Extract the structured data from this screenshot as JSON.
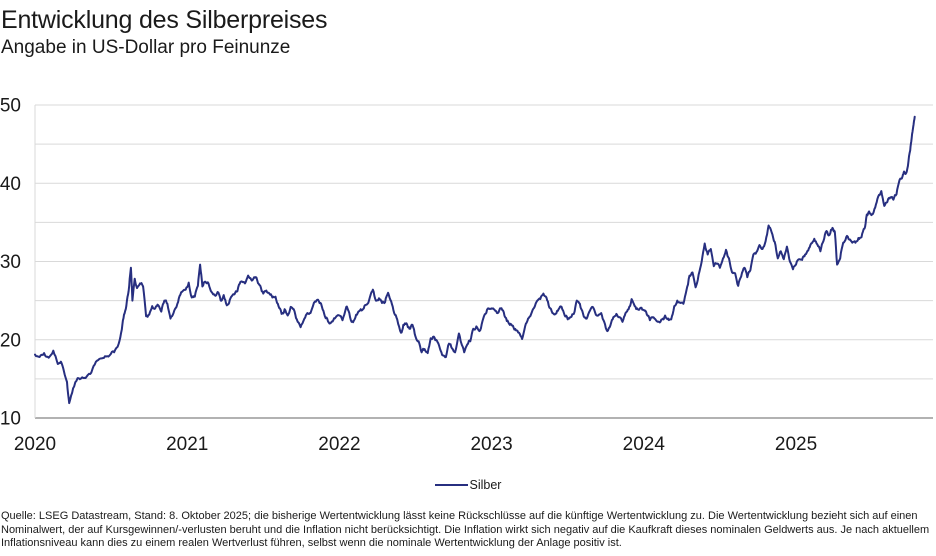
{
  "header": {
    "title": "Entwicklung des Silberpreises",
    "subtitle": "Angabe in US-Dollar pro Feinunze"
  },
  "footer": {
    "source_note": "Quelle: LSEG Datastream, Stand: 8. Oktober 2025; die bisherige Wertentwicklung lässt keine Rückschlüsse auf die künftige Wertentwicklung zu. Die Wertentwicklung bezieht sich auf einen Nominalwert, der auf Kursgewinnen/-verlusten beruht und die Inflation nicht berücksichtigt. Die Inflation wirkt sich negativ auf die Kaufkraft dieses nominalen Geldwerts aus. Je nach aktuellem Inflationsniveau kann dies zu einem realen Wertverlust führen, selbst wenn die nominale Wertentwicklung der Anlage positiv ist."
  },
  "colors": {
    "line": "#272f80",
    "grid": "#d9d9d9",
    "axis": "#999999",
    "text": "#1a1a1a"
  },
  "chart_data": {
    "type": "line",
    "title": "Entwicklung des Silberpreises",
    "subtitle": "Angabe in US-Dollar pro Feinunze",
    "xlabel": "",
    "ylabel": "US-Dollar pro Feinunze",
    "xlim": [
      2020,
      2025.9
    ],
    "ylim": [
      10,
      50
    ],
    "xticks": [
      2020,
      2021,
      2022,
      2023,
      2024,
      2025
    ],
    "ytick_labels": [
      10,
      20,
      30,
      40,
      50
    ],
    "grid": true,
    "grid_interval": 5,
    "legend": {
      "position": "bottom-center",
      "entries": [
        {
          "label": "Silber",
          "color": "#272f80"
        }
      ]
    },
    "render_hints": {
      "noise_amplitude": 0.25,
      "noise_levels": 2,
      "noise_seed": 42,
      "line_width": 2
    },
    "series": [
      {
        "name": "Silber",
        "color": "#272f80",
        "points": [
          [
            2020.0,
            18.1
          ],
          [
            2020.03,
            17.8
          ],
          [
            2020.06,
            18.3
          ],
          [
            2020.09,
            17.7
          ],
          [
            2020.12,
            18.6
          ],
          [
            2020.15,
            16.9
          ],
          [
            2020.17,
            17.2
          ],
          [
            2020.19,
            16.0
          ],
          [
            2020.21,
            14.6
          ],
          [
            2020.225,
            11.9
          ],
          [
            2020.25,
            13.8
          ],
          [
            2020.28,
            15.1
          ],
          [
            2020.31,
            15.2
          ],
          [
            2020.34,
            15.3
          ],
          [
            2020.37,
            15.8
          ],
          [
            2020.4,
            17.2
          ],
          [
            2020.43,
            17.6
          ],
          [
            2020.46,
            17.9
          ],
          [
            2020.49,
            18.0
          ],
          [
            2020.52,
            18.4
          ],
          [
            2020.55,
            19.5
          ],
          [
            2020.57,
            21.3
          ],
          [
            2020.585,
            23.2
          ],
          [
            2020.6,
            24.3
          ],
          [
            2020.615,
            26.2
          ],
          [
            2020.63,
            29.2
          ],
          [
            2020.64,
            25.0
          ],
          [
            2020.655,
            27.8
          ],
          [
            2020.67,
            26.6
          ],
          [
            2020.69,
            27.2
          ],
          [
            2020.71,
            26.8
          ],
          [
            2020.73,
            23.0
          ],
          [
            2020.75,
            23.2
          ],
          [
            2020.77,
            24.3
          ],
          [
            2020.79,
            24.0
          ],
          [
            2020.81,
            24.4
          ],
          [
            2020.83,
            23.6
          ],
          [
            2020.85,
            25.0
          ],
          [
            2020.87,
            24.6
          ],
          [
            2020.89,
            22.7
          ],
          [
            2020.91,
            23.4
          ],
          [
            2020.93,
            24.2
          ],
          [
            2020.95,
            25.6
          ],
          [
            2020.97,
            26.2
          ],
          [
            2020.99,
            26.4
          ],
          [
            2021.01,
            27.3
          ],
          [
            2021.03,
            25.4
          ],
          [
            2021.05,
            25.5
          ],
          [
            2021.07,
            26.9
          ],
          [
            2021.085,
            29.6
          ],
          [
            2021.1,
            26.8
          ],
          [
            2021.12,
            27.4
          ],
          [
            2021.14,
            27.2
          ],
          [
            2021.16,
            26.1
          ],
          [
            2021.18,
            25.7
          ],
          [
            2021.2,
            26.1
          ],
          [
            2021.22,
            25.0
          ],
          [
            2021.24,
            25.7
          ],
          [
            2021.26,
            24.4
          ],
          [
            2021.28,
            25.1
          ],
          [
            2021.31,
            25.8
          ],
          [
            2021.33,
            26.2
          ],
          [
            2021.35,
            27.4
          ],
          [
            2021.38,
            27.2
          ],
          [
            2021.4,
            28.2
          ],
          [
            2021.42,
            27.7
          ],
          [
            2021.44,
            28.0
          ],
          [
            2021.46,
            27.6
          ],
          [
            2021.48,
            26.9
          ],
          [
            2021.5,
            25.9
          ],
          [
            2021.52,
            26.3
          ],
          [
            2021.54,
            25.9
          ],
          [
            2021.56,
            25.4
          ],
          [
            2021.58,
            25.5
          ],
          [
            2021.6,
            24.3
          ],
          [
            2021.62,
            23.3
          ],
          [
            2021.64,
            23.9
          ],
          [
            2021.66,
            23.1
          ],
          [
            2021.68,
            24.2
          ],
          [
            2021.7,
            23.9
          ],
          [
            2021.72,
            22.6
          ],
          [
            2021.745,
            21.6
          ],
          [
            2021.77,
            22.7
          ],
          [
            2021.79,
            23.4
          ],
          [
            2021.81,
            23.4
          ],
          [
            2021.84,
            24.9
          ],
          [
            2021.86,
            25.1
          ],
          [
            2021.88,
            24.6
          ],
          [
            2021.9,
            23.3
          ],
          [
            2021.92,
            22.7
          ],
          [
            2021.94,
            22.1
          ],
          [
            2021.96,
            22.5
          ],
          [
            2021.98,
            23.0
          ],
          [
            2022.0,
            23.1
          ],
          [
            2022.02,
            22.5
          ],
          [
            2022.045,
            24.2
          ],
          [
            2022.06,
            23.7
          ],
          [
            2022.08,
            22.3
          ],
          [
            2022.1,
            22.6
          ],
          [
            2022.12,
            23.4
          ],
          [
            2022.14,
            23.9
          ],
          [
            2022.16,
            24.0
          ],
          [
            2022.18,
            24.5
          ],
          [
            2022.2,
            25.4
          ],
          [
            2022.22,
            26.4
          ],
          [
            2022.24,
            25.0
          ],
          [
            2022.26,
            25.3
          ],
          [
            2022.28,
            24.7
          ],
          [
            2022.3,
            24.8
          ],
          [
            2022.32,
            26.0
          ],
          [
            2022.34,
            24.9
          ],
          [
            2022.36,
            23.4
          ],
          [
            2022.38,
            22.6
          ],
          [
            2022.405,
            20.9
          ],
          [
            2022.42,
            21.9
          ],
          [
            2022.44,
            22.1
          ],
          [
            2022.46,
            21.4
          ],
          [
            2022.48,
            21.9
          ],
          [
            2022.5,
            20.4
          ],
          [
            2022.52,
            19.8
          ],
          [
            2022.54,
            18.4
          ],
          [
            2022.56,
            18.8
          ],
          [
            2022.58,
            18.3
          ],
          [
            2022.6,
            20.2
          ],
          [
            2022.62,
            20.4
          ],
          [
            2022.64,
            19.9
          ],
          [
            2022.66,
            18.9
          ],
          [
            2022.68,
            18.0
          ],
          [
            2022.7,
            17.8
          ],
          [
            2022.72,
            19.5
          ],
          [
            2022.74,
            18.9
          ],
          [
            2022.76,
            18.4
          ],
          [
            2022.785,
            20.8
          ],
          [
            2022.8,
            19.6
          ],
          [
            2022.82,
            18.4
          ],
          [
            2022.84,
            19.4
          ],
          [
            2022.86,
            19.8
          ],
          [
            2022.88,
            21.4
          ],
          [
            2022.9,
            21.7
          ],
          [
            2022.92,
            21.1
          ],
          [
            2022.94,
            22.4
          ],
          [
            2022.96,
            23.3
          ],
          [
            2022.98,
            24.0
          ],
          [
            2023.0,
            24.0
          ],
          [
            2023.02,
            23.8
          ],
          [
            2023.04,
            23.4
          ],
          [
            2023.06,
            24.0
          ],
          [
            2023.08,
            23.5
          ],
          [
            2023.1,
            22.4
          ],
          [
            2023.12,
            21.9
          ],
          [
            2023.14,
            21.8
          ],
          [
            2023.16,
            21.2
          ],
          [
            2023.18,
            20.9
          ],
          [
            2023.2,
            20.1
          ],
          [
            2023.22,
            21.7
          ],
          [
            2023.24,
            22.7
          ],
          [
            2023.26,
            23.3
          ],
          [
            2023.28,
            24.1
          ],
          [
            2023.3,
            25.0
          ],
          [
            2023.32,
            25.2
          ],
          [
            2023.34,
            25.9
          ],
          [
            2023.36,
            25.4
          ],
          [
            2023.38,
            24.1
          ],
          [
            2023.4,
            23.4
          ],
          [
            2023.42,
            23.3
          ],
          [
            2023.44,
            23.9
          ],
          [
            2023.46,
            24.2
          ],
          [
            2023.48,
            23.1
          ],
          [
            2023.5,
            22.6
          ],
          [
            2023.52,
            22.9
          ],
          [
            2023.54,
            23.3
          ],
          [
            2023.56,
            25.0
          ],
          [
            2023.58,
            24.6
          ],
          [
            2023.6,
            23.4
          ],
          [
            2023.62,
            22.7
          ],
          [
            2023.64,
            23.5
          ],
          [
            2023.66,
            24.2
          ],
          [
            2023.68,
            23.5
          ],
          [
            2023.7,
            23.1
          ],
          [
            2023.72,
            23.4
          ],
          [
            2023.74,
            22.3
          ],
          [
            2023.76,
            21.1
          ],
          [
            2023.78,
            21.8
          ],
          [
            2023.8,
            22.9
          ],
          [
            2023.82,
            23.3
          ],
          [
            2023.84,
            22.9
          ],
          [
            2023.86,
            22.3
          ],
          [
            2023.88,
            23.4
          ],
          [
            2023.9,
            23.9
          ],
          [
            2023.92,
            25.2
          ],
          [
            2023.94,
            24.3
          ],
          [
            2023.96,
            23.9
          ],
          [
            2023.98,
            24.1
          ],
          [
            2024.0,
            23.8
          ],
          [
            2024.02,
            23.2
          ],
          [
            2024.04,
            22.5
          ],
          [
            2024.06,
            22.9
          ],
          [
            2024.08,
            22.5
          ],
          [
            2024.1,
            22.3
          ],
          [
            2024.12,
            22.6
          ],
          [
            2024.14,
            23.1
          ],
          [
            2024.16,
            22.7
          ],
          [
            2024.18,
            22.6
          ],
          [
            2024.2,
            24.3
          ],
          [
            2024.22,
            25.0
          ],
          [
            2024.24,
            24.7
          ],
          [
            2024.26,
            24.6
          ],
          [
            2024.28,
            26.3
          ],
          [
            2024.3,
            28.2
          ],
          [
            2024.32,
            28.6
          ],
          [
            2024.34,
            26.7
          ],
          [
            2024.36,
            28.3
          ],
          [
            2024.38,
            30.0
          ],
          [
            2024.4,
            32.3
          ],
          [
            2024.42,
            30.9
          ],
          [
            2024.44,
            31.6
          ],
          [
            2024.46,
            29.4
          ],
          [
            2024.48,
            29.7
          ],
          [
            2024.5,
            29.2
          ],
          [
            2024.52,
            30.4
          ],
          [
            2024.54,
            31.5
          ],
          [
            2024.56,
            30.4
          ],
          [
            2024.58,
            28.6
          ],
          [
            2024.6,
            28.5
          ],
          [
            2024.62,
            26.9
          ],
          [
            2024.64,
            28.1
          ],
          [
            2024.66,
            29.2
          ],
          [
            2024.68,
            28.0
          ],
          [
            2024.7,
            28.9
          ],
          [
            2024.72,
            30.9
          ],
          [
            2024.74,
            31.2
          ],
          [
            2024.76,
            32.1
          ],
          [
            2024.78,
            31.6
          ],
          [
            2024.8,
            32.6
          ],
          [
            2024.82,
            34.6
          ],
          [
            2024.84,
            33.7
          ],
          [
            2024.86,
            32.5
          ],
          [
            2024.88,
            30.4
          ],
          [
            2024.9,
            31.3
          ],
          [
            2024.92,
            30.3
          ],
          [
            2024.94,
            31.9
          ],
          [
            2024.96,
            30.0
          ],
          [
            2024.98,
            29.0
          ],
          [
            2025.0,
            29.6
          ],
          [
            2025.02,
            30.3
          ],
          [
            2025.04,
            30.2
          ],
          [
            2025.06,
            30.9
          ],
          [
            2025.08,
            31.4
          ],
          [
            2025.1,
            32.3
          ],
          [
            2025.12,
            32.9
          ],
          [
            2025.14,
            32.2
          ],
          [
            2025.16,
            31.3
          ],
          [
            2025.18,
            32.6
          ],
          [
            2025.2,
            33.9
          ],
          [
            2025.22,
            33.4
          ],
          [
            2025.24,
            34.3
          ],
          [
            2025.255,
            33.8
          ],
          [
            2025.27,
            29.6
          ],
          [
            2025.29,
            30.4
          ],
          [
            2025.31,
            32.4
          ],
          [
            2025.33,
            33.1
          ],
          [
            2025.35,
            32.8
          ],
          [
            2025.37,
            32.4
          ],
          [
            2025.39,
            32.4
          ],
          [
            2025.41,
            33.0
          ],
          [
            2025.43,
            33.1
          ],
          [
            2025.45,
            34.2
          ],
          [
            2025.465,
            36.0
          ],
          [
            2025.48,
            36.4
          ],
          [
            2025.5,
            36.0
          ],
          [
            2025.52,
            36.9
          ],
          [
            2025.54,
            38.3
          ],
          [
            2025.56,
            39.0
          ],
          [
            2025.58,
            37.1
          ],
          [
            2025.6,
            37.6
          ],
          [
            2025.62,
            38.2
          ],
          [
            2025.64,
            37.9
          ],
          [
            2025.66,
            38.6
          ],
          [
            2025.68,
            40.4
          ],
          [
            2025.7,
            40.9
          ],
          [
            2025.71,
            41.5
          ],
          [
            2025.72,
            41.2
          ],
          [
            2025.735,
            42.2
          ],
          [
            2025.75,
            44.2
          ],
          [
            2025.76,
            45.8
          ],
          [
            2025.77,
            47.2
          ],
          [
            2025.78,
            48.5
          ]
        ]
      }
    ]
  }
}
